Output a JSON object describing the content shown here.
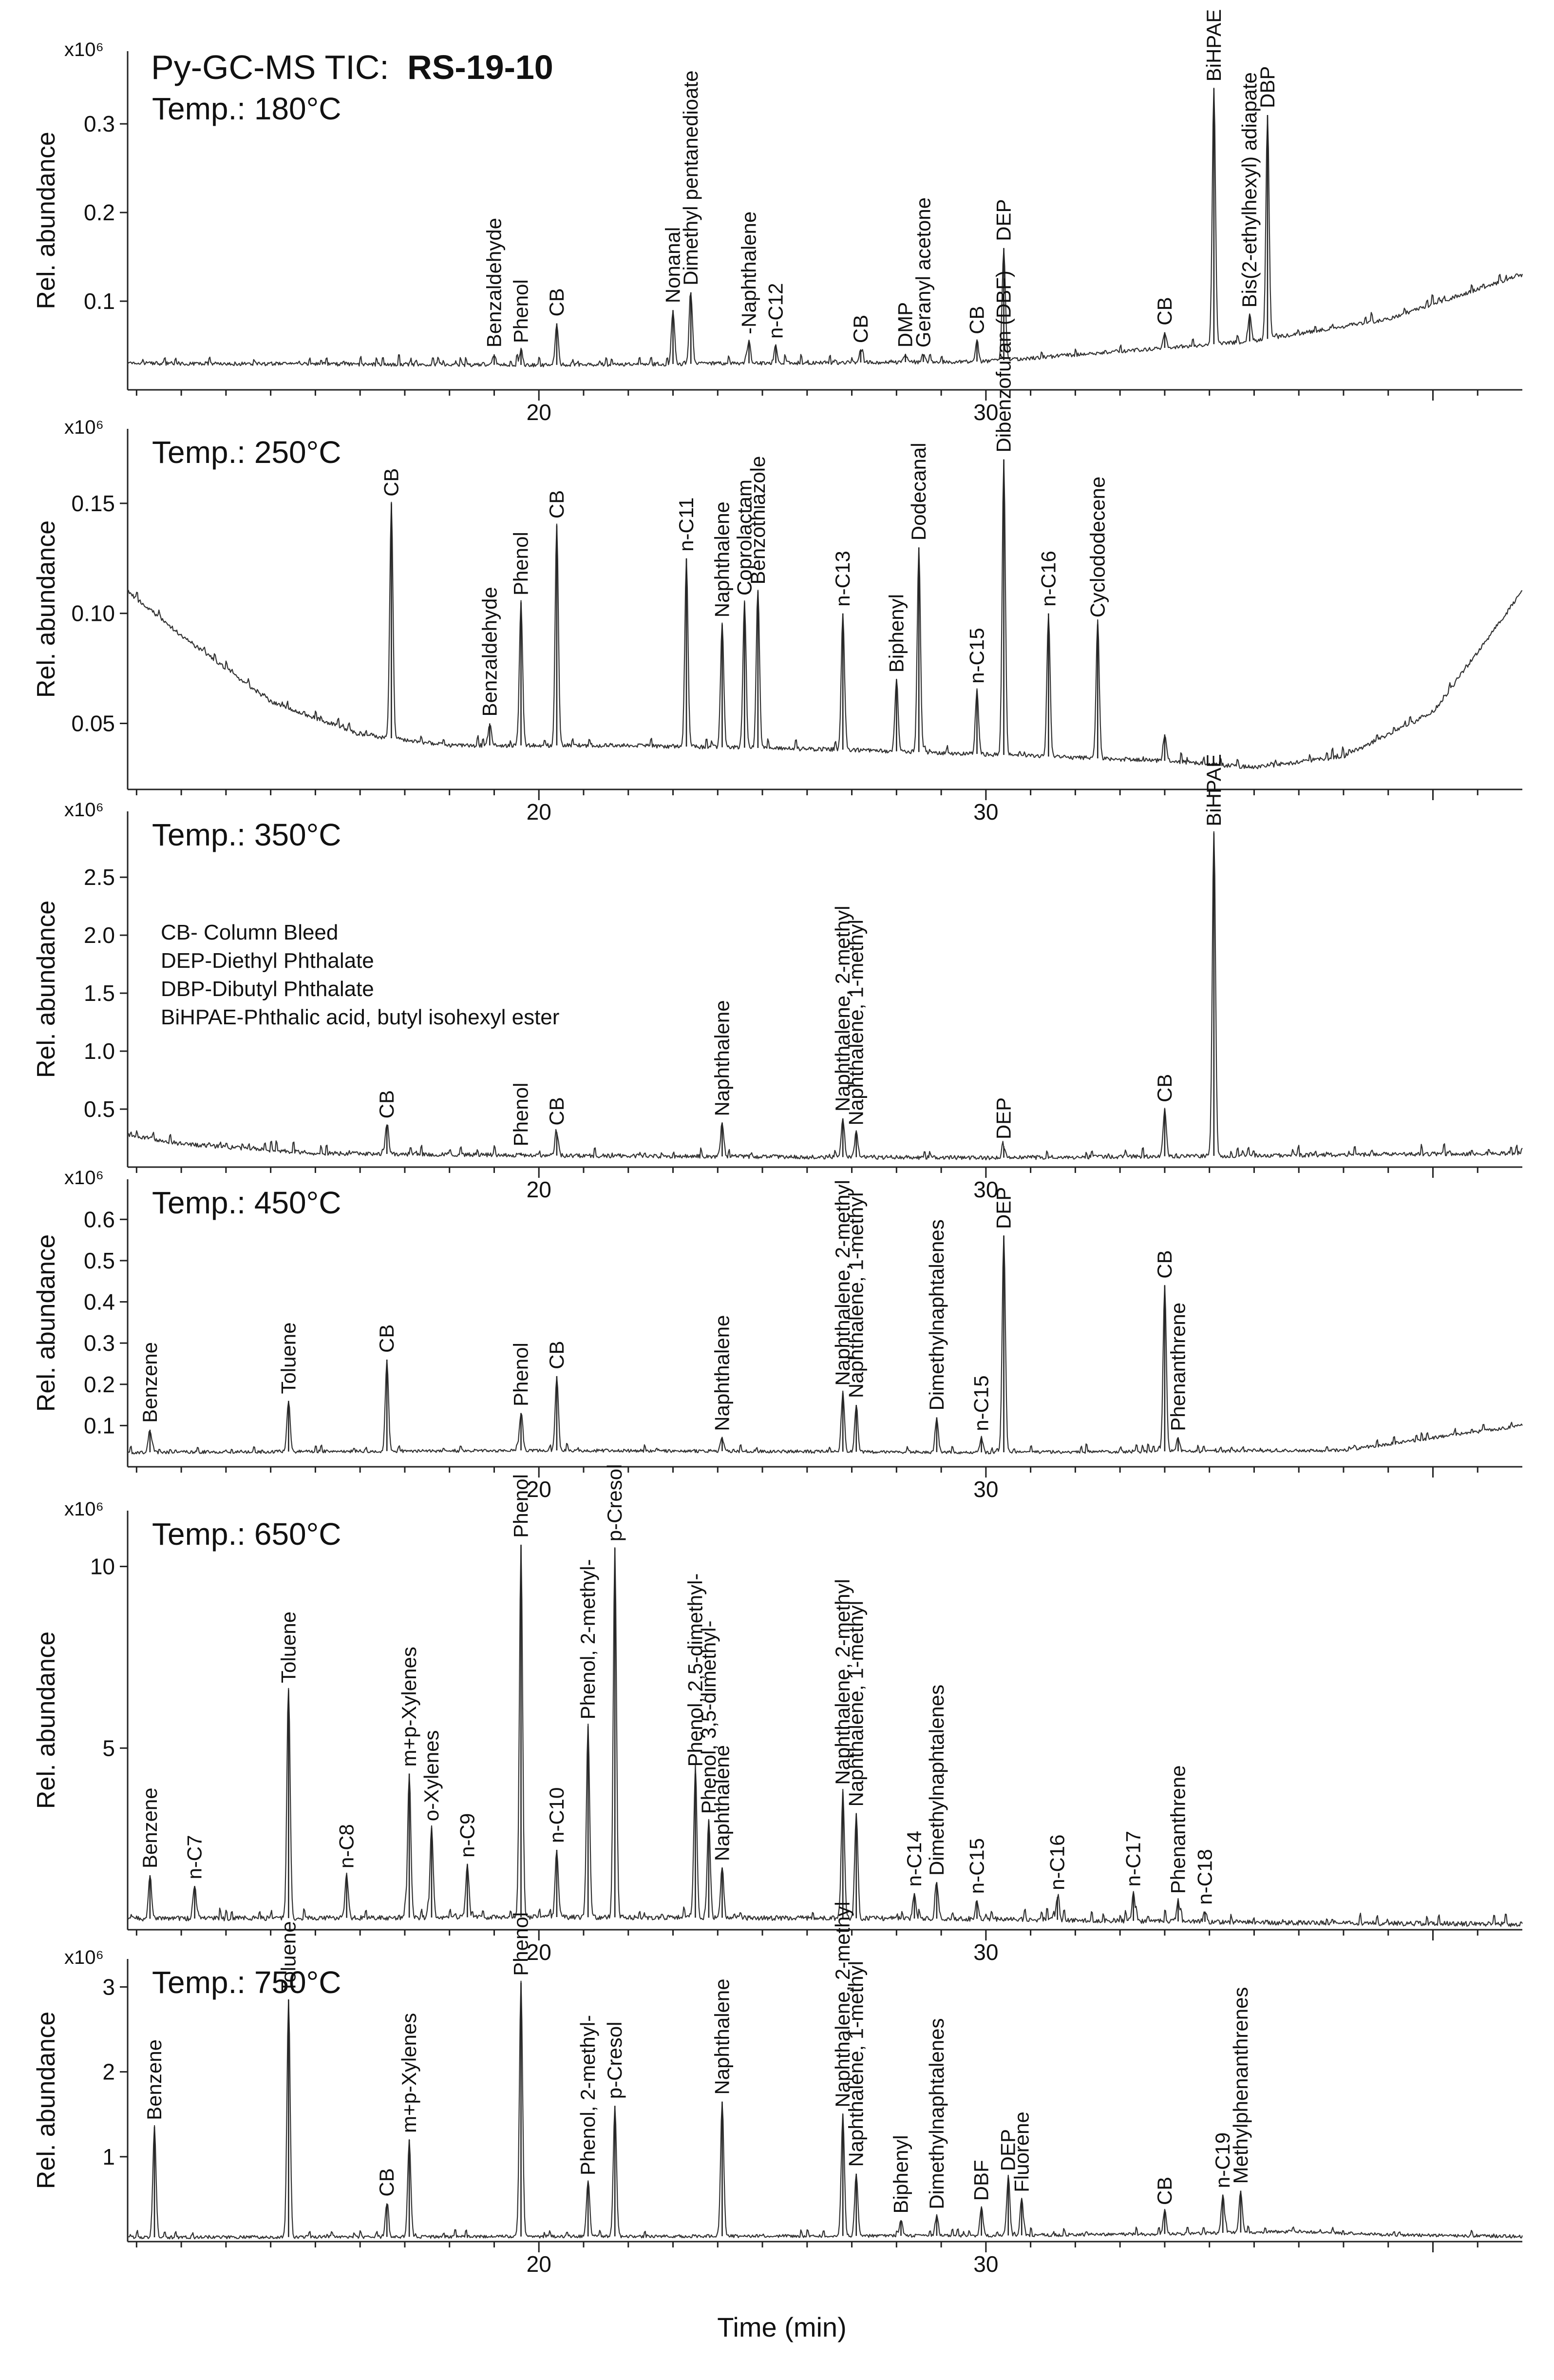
{
  "chart_data": {
    "type": "line",
    "title": "Py-GC-MS TIC:",
    "sample": "RS-19-10",
    "xlabel": "Time (min)",
    "xlim": [
      10.8,
      42.0
    ],
    "x_ticks": [
      "20",
      "30"
    ],
    "ylabel": "Rel. abundance",
    "legend": [
      "CB- Column Bleed",
      "DEP-Diethyl Phthalate",
      "DBP-Dibutyl Phthalate",
      "BiHPAE-Phthalic acid, butyl isohexyl ester"
    ],
    "panels": [
      {
        "name": "Temp.: 180°C",
        "multiplier": "x10⁶",
        "ylim": [
          0.0,
          0.36
        ],
        "y_ticks": [
          {
            "label": "0.1",
            "value": 0.1
          },
          {
            "label": "0.2",
            "value": 0.2
          },
          {
            "label": "0.3",
            "value": 0.3
          }
        ],
        "baseline": [
          [
            10.8,
            0.03
          ],
          [
            20,
            0.028
          ],
          [
            30,
            0.032
          ],
          [
            36,
            0.055
          ],
          [
            39,
            0.08
          ],
          [
            42,
            0.13
          ]
        ],
        "peaks": [
          {
            "t": 19.0,
            "y": 0.04,
            "label": "Benzaldehyde"
          },
          {
            "t": 19.6,
            "y": 0.045,
            "label": "Phenol"
          },
          {
            "t": 20.4,
            "y": 0.075,
            "label": "CB"
          },
          {
            "t": 23.0,
            "y": 0.09,
            "label": "Nonanal"
          },
          {
            "t": 23.4,
            "y": 0.11,
            "label": "Dimethyl pentanedioate"
          },
          {
            "t": 24.7,
            "y": 0.055,
            "label": "-Naphthalene"
          },
          {
            "t": 25.3,
            "y": 0.05,
            "label": "n-C12"
          },
          {
            "t": 27.2,
            "y": 0.045,
            "label": "CB"
          },
          {
            "t": 28.2,
            "y": 0.04,
            "label": "DMP"
          },
          {
            "t": 28.6,
            "y": 0.04,
            "label": "Geranyl acetone"
          },
          {
            "t": 29.8,
            "y": 0.055,
            "label": "CB"
          },
          {
            "t": 30.4,
            "y": 0.16,
            "label": "DEP"
          },
          {
            "t": 34.0,
            "y": 0.065,
            "label": "CB"
          },
          {
            "t": 35.1,
            "y": 0.34,
            "label": "BiHPAE"
          },
          {
            "t": 35.9,
            "y": 0.085,
            "label": "Bis(2-ethylhexyl) adiapate"
          },
          {
            "t": 36.3,
            "y": 0.31,
            "label": "DBP"
          }
        ]
      },
      {
        "name": "Temp.: 250°C",
        "multiplier": "x10⁶",
        "ylim": [
          0.02,
          0.175
        ],
        "y_ticks": [
          {
            "label": "0.05",
            "value": 0.05
          },
          {
            "label": "0.10",
            "value": 0.1
          },
          {
            "label": "0.15",
            "value": 0.15
          }
        ],
        "baseline": [
          [
            10.8,
            0.11
          ],
          [
            12,
            0.09
          ],
          [
            14,
            0.06
          ],
          [
            16,
            0.045
          ],
          [
            18,
            0.04
          ],
          [
            22,
            0.04
          ],
          [
            27,
            0.038
          ],
          [
            30,
            0.036
          ],
          [
            34,
            0.033
          ],
          [
            36,
            0.03
          ],
          [
            38,
            0.035
          ],
          [
            40,
            0.055
          ],
          [
            42,
            0.11
          ]
        ],
        "peaks": [
          {
            "t": 16.7,
            "y": 0.15,
            "label": "CB"
          },
          {
            "t": 18.9,
            "y": 0.05,
            "label": "Benzaldehyde"
          },
          {
            "t": 19.6,
            "y": 0.105,
            "label": "Phenol"
          },
          {
            "t": 20.4,
            "y": 0.14,
            "label": "CB"
          },
          {
            "t": 23.3,
            "y": 0.125,
            "label": "n-C11"
          },
          {
            "t": 24.1,
            "y": 0.095,
            "label": "Naphthalene"
          },
          {
            "t": 24.6,
            "y": 0.105,
            "label": "Coprolactam"
          },
          {
            "t": 24.9,
            "y": 0.11,
            "label": "Benzothiazole"
          },
          {
            "t": 26.8,
            "y": 0.1,
            "label": "n-C13"
          },
          {
            "t": 28.0,
            "y": 0.07,
            "label": "Biphenyl"
          },
          {
            "t": 28.5,
            "y": 0.13,
            "label": "Dodecanal"
          },
          {
            "t": 29.8,
            "y": 0.065,
            "label": "n-C15"
          },
          {
            "t": 30.4,
            "y": 0.17,
            "label": "Dibenzofuran (DBF)"
          },
          {
            "t": 31.4,
            "y": 0.1,
            "label": "n-C16"
          },
          {
            "t": 32.5,
            "y": 0.095,
            "label": "Cyclododecene"
          },
          {
            "t": 34.0,
            "y": 0.045,
            "label": ""
          }
        ]
      },
      {
        "name": "Temp.: 350°C",
        "multiplier": "x10⁶",
        "ylim": [
          0.0,
          2.9
        ],
        "y_ticks": [
          {
            "label": "0.5",
            "value": 0.5
          },
          {
            "label": "1.0",
            "value": 1.0
          },
          {
            "label": "1.5",
            "value": 1.5
          },
          {
            "label": "2.0",
            "value": 2.0
          },
          {
            "label": "2.5",
            "value": 2.5
          }
        ],
        "baseline": [
          [
            10.8,
            0.28
          ],
          [
            12,
            0.2
          ],
          [
            15,
            0.12
          ],
          [
            20,
            0.1
          ],
          [
            30,
            0.08
          ],
          [
            42,
            0.12
          ]
        ],
        "peaks": [
          {
            "t": 16.6,
            "y": 0.36,
            "label": "CB"
          },
          {
            "t": 19.6,
            "y": 0.12,
            "label": "Phenol"
          },
          {
            "t": 20.4,
            "y": 0.3,
            "label": "CB"
          },
          {
            "t": 24.1,
            "y": 0.38,
            "label": "Naphthalene"
          },
          {
            "t": 26.8,
            "y": 0.42,
            "label": "Naphthalene, 2-methyl"
          },
          {
            "t": 27.1,
            "y": 0.3,
            "label": "Naphthalene, 1-methyl"
          },
          {
            "t": 30.4,
            "y": 0.18,
            "label": "DEP"
          },
          {
            "t": 34.0,
            "y": 0.5,
            "label": "CB"
          },
          {
            "t": 35.1,
            "y": 2.88,
            "label": "BiHPAE"
          }
        ]
      },
      {
        "name": "Temp.: 450°C",
        "multiplier": "x10⁶",
        "ylim": [
          0.0,
          0.65
        ],
        "y_ticks": [
          {
            "label": "0.1",
            "value": 0.1
          },
          {
            "label": "0.2",
            "value": 0.2
          },
          {
            "label": "0.3",
            "value": 0.3
          },
          {
            "label": "0.4",
            "value": 0.4
          },
          {
            "label": "0.5",
            "value": 0.5
          },
          {
            "label": "0.6",
            "value": 0.6
          }
        ],
        "baseline": [
          [
            10.8,
            0.035
          ],
          [
            20,
            0.04
          ],
          [
            30,
            0.035
          ],
          [
            38,
            0.04
          ],
          [
            42,
            0.1
          ]
        ],
        "peaks": [
          {
            "t": 11.3,
            "y": 0.09,
            "label": "Benzene"
          },
          {
            "t": 14.4,
            "y": 0.16,
            "label": "Toluene"
          },
          {
            "t": 16.6,
            "y": 0.26,
            "label": "CB"
          },
          {
            "t": 19.6,
            "y": 0.13,
            "label": "Phenol"
          },
          {
            "t": 20.4,
            "y": 0.22,
            "label": "CB"
          },
          {
            "t": 24.1,
            "y": 0.07,
            "label": "Naphthalene"
          },
          {
            "t": 26.8,
            "y": 0.18,
            "label": "Naphthalene, 2-methyl"
          },
          {
            "t": 27.1,
            "y": 0.15,
            "label": "Naphthalene, 1-methyl"
          },
          {
            "t": 28.9,
            "y": 0.12,
            "label": "Dimethylnaphtalenes"
          },
          {
            "t": 29.9,
            "y": 0.07,
            "label": "n-C15"
          },
          {
            "t": 30.4,
            "y": 0.56,
            "label": "DEP"
          },
          {
            "t": 34.0,
            "y": 0.44,
            "label": "CB"
          },
          {
            "t": 34.3,
            "y": 0.07,
            "label": "Phenanthrene"
          }
        ]
      },
      {
        "name": "Temp.: 650°C",
        "multiplier": "x10⁶",
        "ylim": [
          0.0,
          11.0
        ],
        "y_ticks": [
          {
            "label": "5",
            "value": 5
          },
          {
            "label": "10",
            "value": 10
          }
        ],
        "baseline": [
          [
            10.8,
            0.3
          ],
          [
            20,
            0.35
          ],
          [
            30,
            0.3
          ],
          [
            36,
            0.2
          ],
          [
            42,
            0.15
          ]
        ],
        "peaks": [
          {
            "t": 11.3,
            "y": 1.5,
            "label": "Benzene"
          },
          {
            "t": 12.3,
            "y": 1.2,
            "label": "n-C7"
          },
          {
            "t": 14.4,
            "y": 6.6,
            "label": "Toluene"
          },
          {
            "t": 15.7,
            "y": 1.5,
            "label": "n-C8"
          },
          {
            "t": 17.1,
            "y": 4.3,
            "label": "m+p-Xylenes"
          },
          {
            "t": 17.6,
            "y": 2.8,
            "label": "o-Xylenes"
          },
          {
            "t": 18.4,
            "y": 1.8,
            "label": "n-C9"
          },
          {
            "t": 19.6,
            "y": 10.6,
            "label": "Phenol"
          },
          {
            "t": 20.4,
            "y": 2.2,
            "label": "n-C10"
          },
          {
            "t": 21.1,
            "y": 5.6,
            "label": "Phenol, 2-methyl-"
          },
          {
            "t": 21.7,
            "y": 10.5,
            "label": "p-Cresol"
          },
          {
            "t": 23.5,
            "y": 4.3,
            "label": "Phenol, 2,5-dimethyl-"
          },
          {
            "t": 23.8,
            "y": 3.0,
            "label": "Phenol, 3,5-dimethyl-"
          },
          {
            "t": 24.1,
            "y": 1.7,
            "label": "Naphthalene"
          },
          {
            "t": 26.8,
            "y": 3.8,
            "label": "Naphthalene, 2-methyl"
          },
          {
            "t": 27.1,
            "y": 3.2,
            "label": "Naphthalene, 1-methyl"
          },
          {
            "t": 28.4,
            "y": 1.0,
            "label": "n-C14"
          },
          {
            "t": 28.9,
            "y": 1.3,
            "label": "Dimethylnaphtalenes"
          },
          {
            "t": 29.8,
            "y": 0.8,
            "label": "n-C15"
          },
          {
            "t": 31.6,
            "y": 0.9,
            "label": "n-C16"
          },
          {
            "t": 33.3,
            "y": 1.0,
            "label": "n-C17"
          },
          {
            "t": 34.3,
            "y": 0.8,
            "label": "Phenanthrene"
          },
          {
            "t": 34.9,
            "y": 0.5,
            "label": "n-C18"
          }
        ]
      },
      {
        "name": "Temp.: 750°C",
        "multiplier": "x10⁶",
        "ylim": [
          0.0,
          3.1
        ],
        "y_ticks": [
          {
            "label": "1",
            "value": 1
          },
          {
            "label": "2",
            "value": 2
          },
          {
            "label": "3",
            "value": 3
          }
        ],
        "baseline": [
          [
            10.8,
            0.05
          ],
          [
            20,
            0.06
          ],
          [
            30,
            0.07
          ],
          [
            34,
            0.09
          ],
          [
            37,
            0.12
          ],
          [
            39,
            0.08
          ],
          [
            42,
            0.06
          ]
        ],
        "peaks": [
          {
            "t": 11.4,
            "y": 1.35,
            "label": "Benzene"
          },
          {
            "t": 14.4,
            "y": 2.85,
            "label": "Toluene"
          },
          {
            "t": 16.6,
            "y": 0.45,
            "label": "CB"
          },
          {
            "t": 17.1,
            "y": 1.2,
            "label": "m+p-Xylenes"
          },
          {
            "t": 19.6,
            "y": 3.05,
            "label": "Phenol"
          },
          {
            "t": 21.1,
            "y": 0.7,
            "label": "Phenol, 2-methyl-"
          },
          {
            "t": 21.7,
            "y": 1.6,
            "label": "p-Cresol"
          },
          {
            "t": 24.1,
            "y": 1.65,
            "label": "Naphthalene"
          },
          {
            "t": 26.8,
            "y": 1.5,
            "label": "Naphthalene, 2-methyl"
          },
          {
            "t": 27.1,
            "y": 0.8,
            "label": "Naphthalene, 1-methyl"
          },
          {
            "t": 28.1,
            "y": 0.25,
            "label": "Biphenyl"
          },
          {
            "t": 28.9,
            "y": 0.3,
            "label": "Dimethylnaphtalenes"
          },
          {
            "t": 29.9,
            "y": 0.4,
            "label": "DBF"
          },
          {
            "t": 30.5,
            "y": 0.75,
            "label": "DEP"
          },
          {
            "t": 30.8,
            "y": 0.5,
            "label": "Fluorene"
          },
          {
            "t": 34.0,
            "y": 0.35,
            "label": "CB"
          },
          {
            "t": 35.3,
            "y": 0.55,
            "label": "n-C19"
          },
          {
            "t": 35.7,
            "y": 0.6,
            "label": "Methylphenanthrenes"
          }
        ]
      }
    ]
  }
}
